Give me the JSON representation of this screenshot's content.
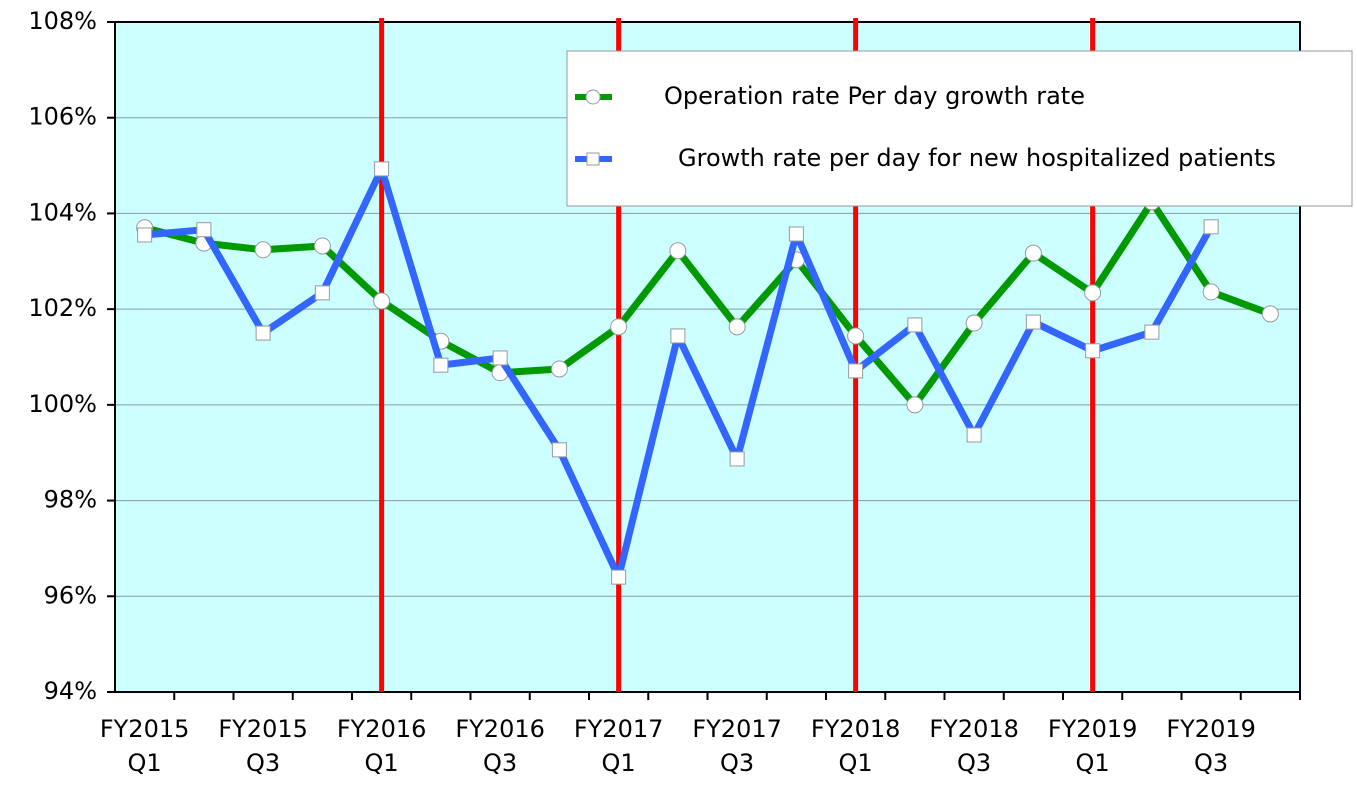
{
  "chart_data": {
    "type": "line",
    "categories": [
      "FY2015\nQ1",
      null,
      "FY2015\nQ3",
      null,
      "FY2016\nQ1",
      null,
      "FY2016\nQ3",
      null,
      "FY2017\nQ1",
      null,
      "FY2017\nQ3",
      null,
      "FY2018\nQ1",
      null,
      "FY2018\nQ3",
      null,
      "FY2019\nQ1",
      null,
      "FY2019\nQ3",
      null
    ],
    "series": [
      {
        "name": "Operation rate Per day growth rate",
        "color": "#009900",
        "marker": "circle",
        "values": [
          103.7,
          103.38,
          103.24,
          103.32,
          102.17,
          101.33,
          100.67,
          100.75,
          101.63,
          103.22,
          101.63,
          103.03,
          101.44,
          100.0,
          101.71,
          103.17,
          102.34,
          104.24,
          102.36,
          101.9
        ]
      },
      {
        "name": "Growth rate per day for new hospitalized patients",
        "color": "#3366ff",
        "marker": "square",
        "values": [
          103.55,
          103.66,
          101.5,
          102.34,
          104.93,
          100.83,
          100.98,
          99.06,
          96.4,
          101.44,
          98.87,
          103.57,
          100.71,
          101.67,
          99.37,
          101.73,
          101.13,
          101.52,
          103.72,
          null
        ]
      }
    ],
    "ylim": [
      94,
      108
    ],
    "yticks": [
      {
        "value": 94,
        "label": "94%"
      },
      {
        "value": 96,
        "label": "96%"
      },
      {
        "value": 98,
        "label": "98%"
      },
      {
        "value": 100,
        "label": "100%"
      },
      {
        "value": 102,
        "label": "102%"
      },
      {
        "value": 104,
        "label": "104%"
      },
      {
        "value": 106,
        "label": "106%"
      },
      {
        "value": 108,
        "label": "108%"
      }
    ],
    "grid": true,
    "plot_background": "#ccffff",
    "year_separators": true,
    "separator_color": "#ff0000",
    "legend": "upper right"
  }
}
